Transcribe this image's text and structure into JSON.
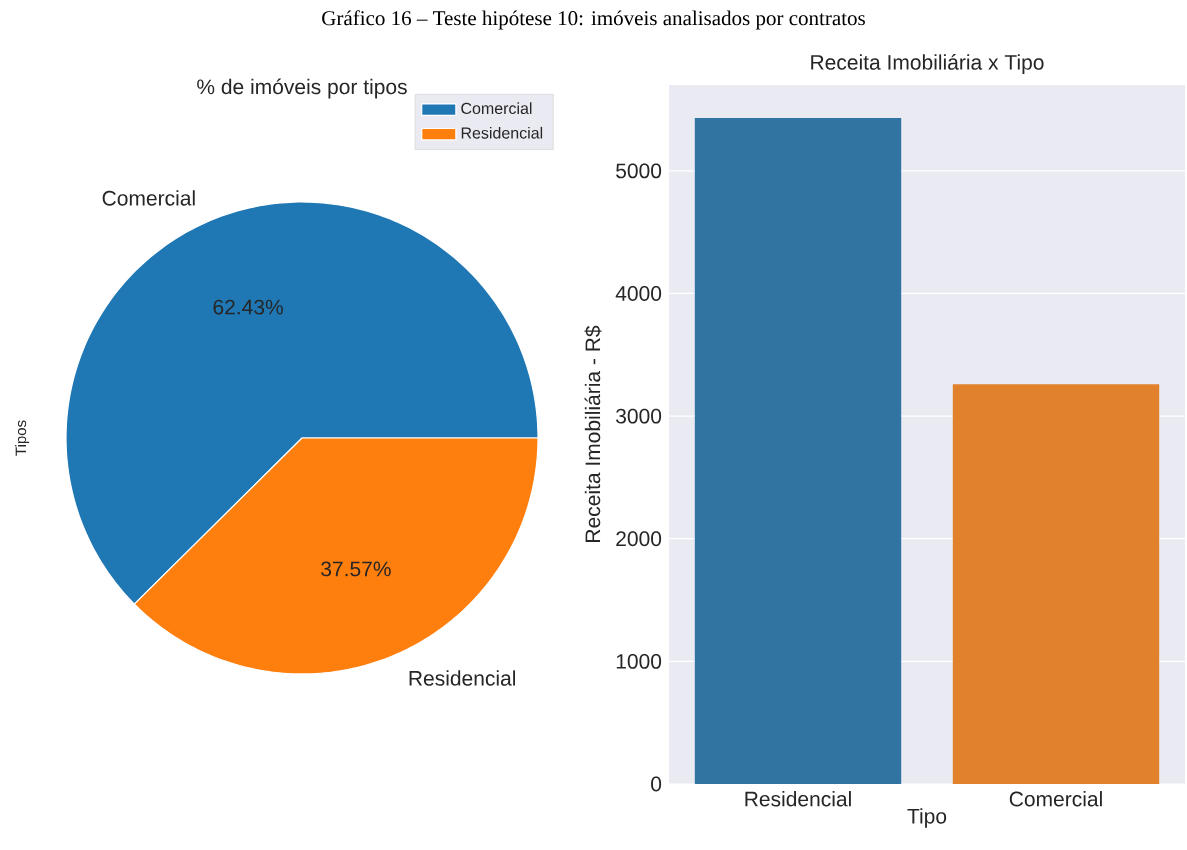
{
  "chart_data": [
    {
      "type": "pie",
      "title": "% de imóveis por tipos",
      "ylabel": "Tipos",
      "categories": [
        "Comercial",
        "Residencial"
      ],
      "values": [
        62.43,
        37.57
      ],
      "value_labels": [
        "62.43%",
        "37.57%"
      ],
      "colors": [
        "#1f77b4",
        "#ff7f0e"
      ],
      "legend": "top right",
      "annotations": [
        "Gráfico 16 – Teste hipótese 10: imóveis analisados por contratos"
      ]
    },
    {
      "type": "bar",
      "title": "Receita Imobiliária x Tipo",
      "xlabel": "Tipo",
      "ylabel": "Receita Imobiliária - R$",
      "categories": [
        "Residencial",
        "Comercial"
      ],
      "values": [
        5430,
        3260
      ],
      "colors": [
        "#3274a1",
        "#e1812c"
      ],
      "ylim": [
        0,
        5700
      ],
      "yticks": [
        0,
        1000,
        2000,
        3000,
        4000,
        5000
      ],
      "grid": "y"
    }
  ]
}
